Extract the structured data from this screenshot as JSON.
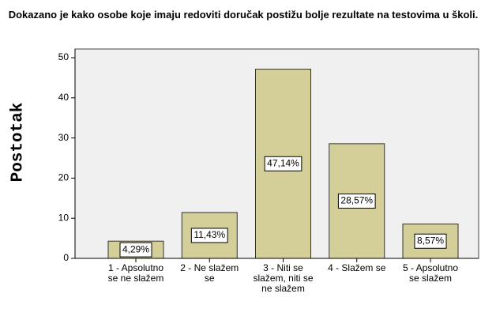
{
  "chart_data": {
    "type": "bar",
    "title": "Dokazano je kako osobe koje imaju redoviti doručak postižu bolje rezultate na testovima u školi.",
    "y_label": "Postotak",
    "categories": [
      "1 - Apsolutno se ne slažem",
      "2 - Ne slažem se",
      "3 - Niti se slažem, niti se ne slažem",
      "4 - Slažem se",
      "5 - Apsolutno se slažem"
    ],
    "values": [
      4.29,
      11.43,
      47.14,
      28.57,
      8.57
    ],
    "value_labels": [
      "4,29%",
      "11,43%",
      "47,14%",
      "28,57%",
      "8,57%"
    ],
    "color": "#d4cf99",
    "ylim": [
      0,
      50
    ],
    "yticks": [
      0,
      10,
      20,
      30,
      40,
      50
    ]
  }
}
